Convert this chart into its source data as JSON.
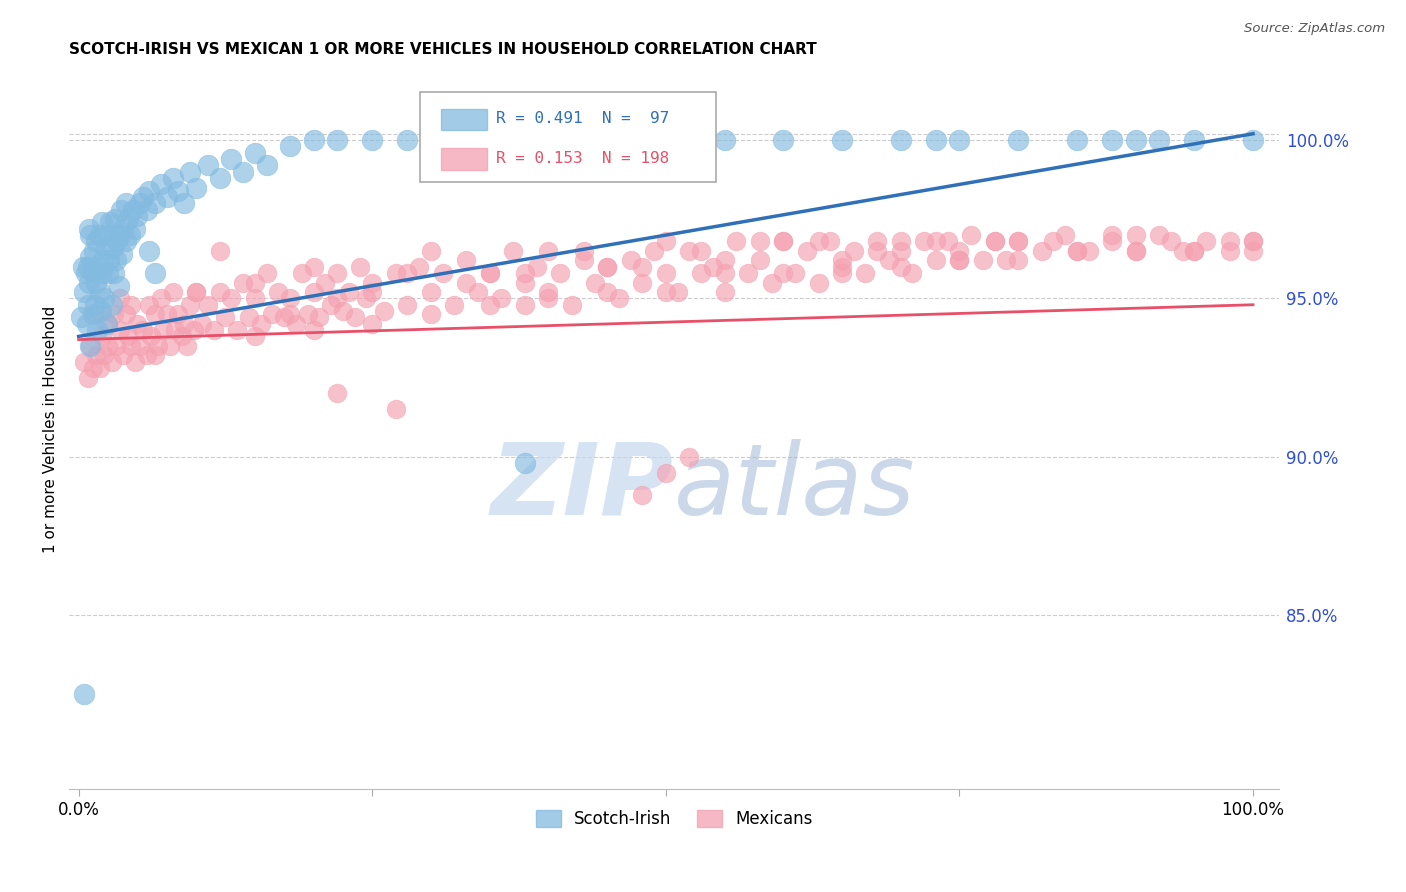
{
  "title": "SCOTCH-IRISH VS MEXICAN 1 OR MORE VEHICLES IN HOUSEHOLD CORRELATION CHART",
  "source": "Source: ZipAtlas.com",
  "ylabel": "1 or more Vehicles in Household",
  "legend_label1": "Scotch-Irish",
  "legend_label2": "Mexicans",
  "r1": 0.491,
  "n1": 97,
  "r2": 0.153,
  "n2": 198,
  "blue_color": "#82bae0",
  "pink_color": "#f4a0b0",
  "blue_line_color": "#3070b8",
  "pink_line_color": "#e8506a",
  "right_axis_color": "#3050d0",
  "watermark_color": "#c5d8ef",
  "ylim_min": 0.795,
  "ylim_max": 1.022,
  "xlim_min": -0.008,
  "xlim_max": 1.022,
  "yticks": [
    0.85,
    0.9,
    0.95,
    1.0
  ],
  "ytick_labels": [
    "85.0%",
    "90.0%",
    "95.0%",
    "100.0%"
  ],
  "blue_line_x0": 0.0,
  "blue_line_y0": 0.938,
  "blue_line_x1": 1.0,
  "blue_line_y1": 1.002,
  "pink_line_x0": 0.0,
  "pink_line_y0": 0.937,
  "pink_line_x1": 1.0,
  "pink_line_y1": 0.948,
  "blue_scatter_x": [
    0.002,
    0.004,
    0.005,
    0.006,
    0.007,
    0.008,
    0.009,
    0.01,
    0.01,
    0.012,
    0.012,
    0.013,
    0.014,
    0.015,
    0.015,
    0.016,
    0.017,
    0.018,
    0.018,
    0.019,
    0.02,
    0.02,
    0.021,
    0.022,
    0.023,
    0.024,
    0.025,
    0.025,
    0.026,
    0.027,
    0.028,
    0.029,
    0.03,
    0.03,
    0.031,
    0.032,
    0.033,
    0.034,
    0.035,
    0.036,
    0.037,
    0.038,
    0.04,
    0.04,
    0.042,
    0.044,
    0.046,
    0.048,
    0.05,
    0.052,
    0.055,
    0.058,
    0.06,
    0.065,
    0.07,
    0.075,
    0.08,
    0.085,
    0.09,
    0.095,
    0.1,
    0.11,
    0.12,
    0.13,
    0.14,
    0.15,
    0.16,
    0.18,
    0.2,
    0.22,
    0.25,
    0.28,
    0.3,
    0.35,
    0.4,
    0.45,
    0.5,
    0.55,
    0.6,
    0.65,
    0.7,
    0.75,
    0.8,
    0.85,
    0.9,
    0.95,
    1.0,
    0.73,
    0.88,
    0.92,
    0.38,
    0.06,
    0.065,
    0.005,
    0.008,
    0.009,
    0.01
  ],
  "blue_scatter_y": [
    0.944,
    0.96,
    0.952,
    0.958,
    0.942,
    0.948,
    0.955,
    0.963,
    0.97,
    0.945,
    0.958,
    0.965,
    0.948,
    0.955,
    0.968,
    0.94,
    0.96,
    0.952,
    0.97,
    0.946,
    0.958,
    0.974,
    0.962,
    0.95,
    0.966,
    0.942,
    0.97,
    0.958,
    0.962,
    0.974,
    0.948,
    0.966,
    0.97,
    0.958,
    0.975,
    0.962,
    0.968,
    0.954,
    0.97,
    0.978,
    0.964,
    0.972,
    0.968,
    0.98,
    0.975,
    0.97,
    0.978,
    0.972,
    0.976,
    0.98,
    0.982,
    0.978,
    0.984,
    0.98,
    0.986,
    0.982,
    0.988,
    0.984,
    0.98,
    0.99,
    0.985,
    0.992,
    0.988,
    0.994,
    0.99,
    0.996,
    0.992,
    0.998,
    1.0,
    1.0,
    1.0,
    1.0,
    1.0,
    1.0,
    1.0,
    1.0,
    1.0,
    1.0,
    1.0,
    1.0,
    1.0,
    1.0,
    1.0,
    1.0,
    1.0,
    1.0,
    1.0,
    1.0,
    1.0,
    1.0,
    0.898,
    0.965,
    0.958,
    0.825,
    0.96,
    0.972,
    0.935
  ],
  "pink_scatter_x": [
    0.005,
    0.008,
    0.01,
    0.012,
    0.015,
    0.015,
    0.018,
    0.02,
    0.022,
    0.025,
    0.025,
    0.028,
    0.03,
    0.032,
    0.035,
    0.035,
    0.038,
    0.04,
    0.042,
    0.045,
    0.045,
    0.048,
    0.05,
    0.052,
    0.055,
    0.058,
    0.06,
    0.062,
    0.065,
    0.065,
    0.068,
    0.07,
    0.072,
    0.075,
    0.078,
    0.08,
    0.082,
    0.085,
    0.088,
    0.09,
    0.092,
    0.095,
    0.098,
    0.1,
    0.105,
    0.11,
    0.115,
    0.12,
    0.125,
    0.13,
    0.135,
    0.14,
    0.145,
    0.15,
    0.155,
    0.16,
    0.165,
    0.17,
    0.175,
    0.18,
    0.185,
    0.19,
    0.195,
    0.2,
    0.205,
    0.21,
    0.215,
    0.22,
    0.225,
    0.23,
    0.235,
    0.24,
    0.245,
    0.25,
    0.26,
    0.27,
    0.28,
    0.29,
    0.3,
    0.31,
    0.32,
    0.33,
    0.34,
    0.35,
    0.36,
    0.37,
    0.38,
    0.38,
    0.39,
    0.4,
    0.41,
    0.42,
    0.43,
    0.44,
    0.45,
    0.46,
    0.47,
    0.48,
    0.49,
    0.5,
    0.51,
    0.52,
    0.53,
    0.54,
    0.55,
    0.56,
    0.57,
    0.58,
    0.59,
    0.6,
    0.61,
    0.62,
    0.63,
    0.64,
    0.65,
    0.66,
    0.67,
    0.68,
    0.69,
    0.7,
    0.71,
    0.72,
    0.73,
    0.74,
    0.75,
    0.76,
    0.77,
    0.78,
    0.79,
    0.8,
    0.82,
    0.84,
    0.86,
    0.88,
    0.9,
    0.92,
    0.94,
    0.96,
    0.98,
    1.0,
    0.15,
    0.2,
    0.25,
    0.3,
    0.35,
    0.4,
    0.45,
    0.5,
    0.55,
    0.6,
    0.65,
    0.7,
    0.75,
    0.8,
    0.85,
    0.9,
    0.95,
    1.0,
    0.1,
    0.12,
    0.15,
    0.18,
    0.2,
    0.22,
    0.25,
    0.28,
    0.3,
    0.33,
    0.35,
    0.38,
    0.4,
    0.43,
    0.45,
    0.48,
    0.5,
    0.53,
    0.55,
    0.58,
    0.6,
    0.63,
    0.65,
    0.68,
    0.7,
    0.73,
    0.75,
    0.78,
    0.8,
    0.83,
    0.85,
    0.88,
    0.9,
    0.93,
    0.95,
    0.98,
    1.0,
    0.5,
    0.48,
    0.52,
    0.27,
    0.22
  ],
  "pink_scatter_y": [
    0.93,
    0.925,
    0.935,
    0.928,
    0.932,
    0.945,
    0.928,
    0.938,
    0.932,
    0.942,
    0.935,
    0.93,
    0.945,
    0.935,
    0.94,
    0.95,
    0.932,
    0.945,
    0.938,
    0.935,
    0.948,
    0.93,
    0.942,
    0.935,
    0.94,
    0.932,
    0.948,
    0.938,
    0.932,
    0.945,
    0.935,
    0.95,
    0.94,
    0.945,
    0.935,
    0.952,
    0.94,
    0.945,
    0.938,
    0.942,
    0.935,
    0.948,
    0.94,
    0.952,
    0.942,
    0.948,
    0.94,
    0.952,
    0.944,
    0.95,
    0.94,
    0.955,
    0.944,
    0.95,
    0.942,
    0.958,
    0.945,
    0.952,
    0.944,
    0.95,
    0.942,
    0.958,
    0.945,
    0.952,
    0.944,
    0.955,
    0.948,
    0.958,
    0.946,
    0.952,
    0.944,
    0.96,
    0.95,
    0.955,
    0.946,
    0.958,
    0.948,
    0.96,
    0.952,
    0.958,
    0.948,
    0.962,
    0.952,
    0.958,
    0.95,
    0.965,
    0.955,
    0.948,
    0.96,
    0.952,
    0.958,
    0.948,
    0.965,
    0.955,
    0.96,
    0.95,
    0.962,
    0.955,
    0.965,
    0.958,
    0.952,
    0.965,
    0.958,
    0.96,
    0.952,
    0.968,
    0.958,
    0.962,
    0.955,
    0.968,
    0.958,
    0.965,
    0.955,
    0.968,
    0.96,
    0.965,
    0.958,
    0.968,
    0.962,
    0.965,
    0.958,
    0.968,
    0.962,
    0.968,
    0.965,
    0.97,
    0.962,
    0.968,
    0.962,
    0.968,
    0.965,
    0.97,
    0.965,
    0.968,
    0.965,
    0.97,
    0.965,
    0.968,
    0.965,
    0.968,
    0.955,
    0.96,
    0.952,
    0.965,
    0.958,
    0.965,
    0.96,
    0.968,
    0.962,
    0.968,
    0.962,
    0.968,
    0.962,
    0.968,
    0.965,
    0.97,
    0.965,
    0.968,
    0.952,
    0.965,
    0.938,
    0.945,
    0.94,
    0.95,
    0.942,
    0.958,
    0.945,
    0.955,
    0.948,
    0.958,
    0.95,
    0.962,
    0.952,
    0.96,
    0.952,
    0.965,
    0.958,
    0.968,
    0.958,
    0.968,
    0.958,
    0.965,
    0.96,
    0.968,
    0.962,
    0.968,
    0.962,
    0.968,
    0.965,
    0.97,
    0.965,
    0.968,
    0.965,
    0.968,
    0.965,
    0.895,
    0.888,
    0.9,
    0.915,
    0.92
  ]
}
